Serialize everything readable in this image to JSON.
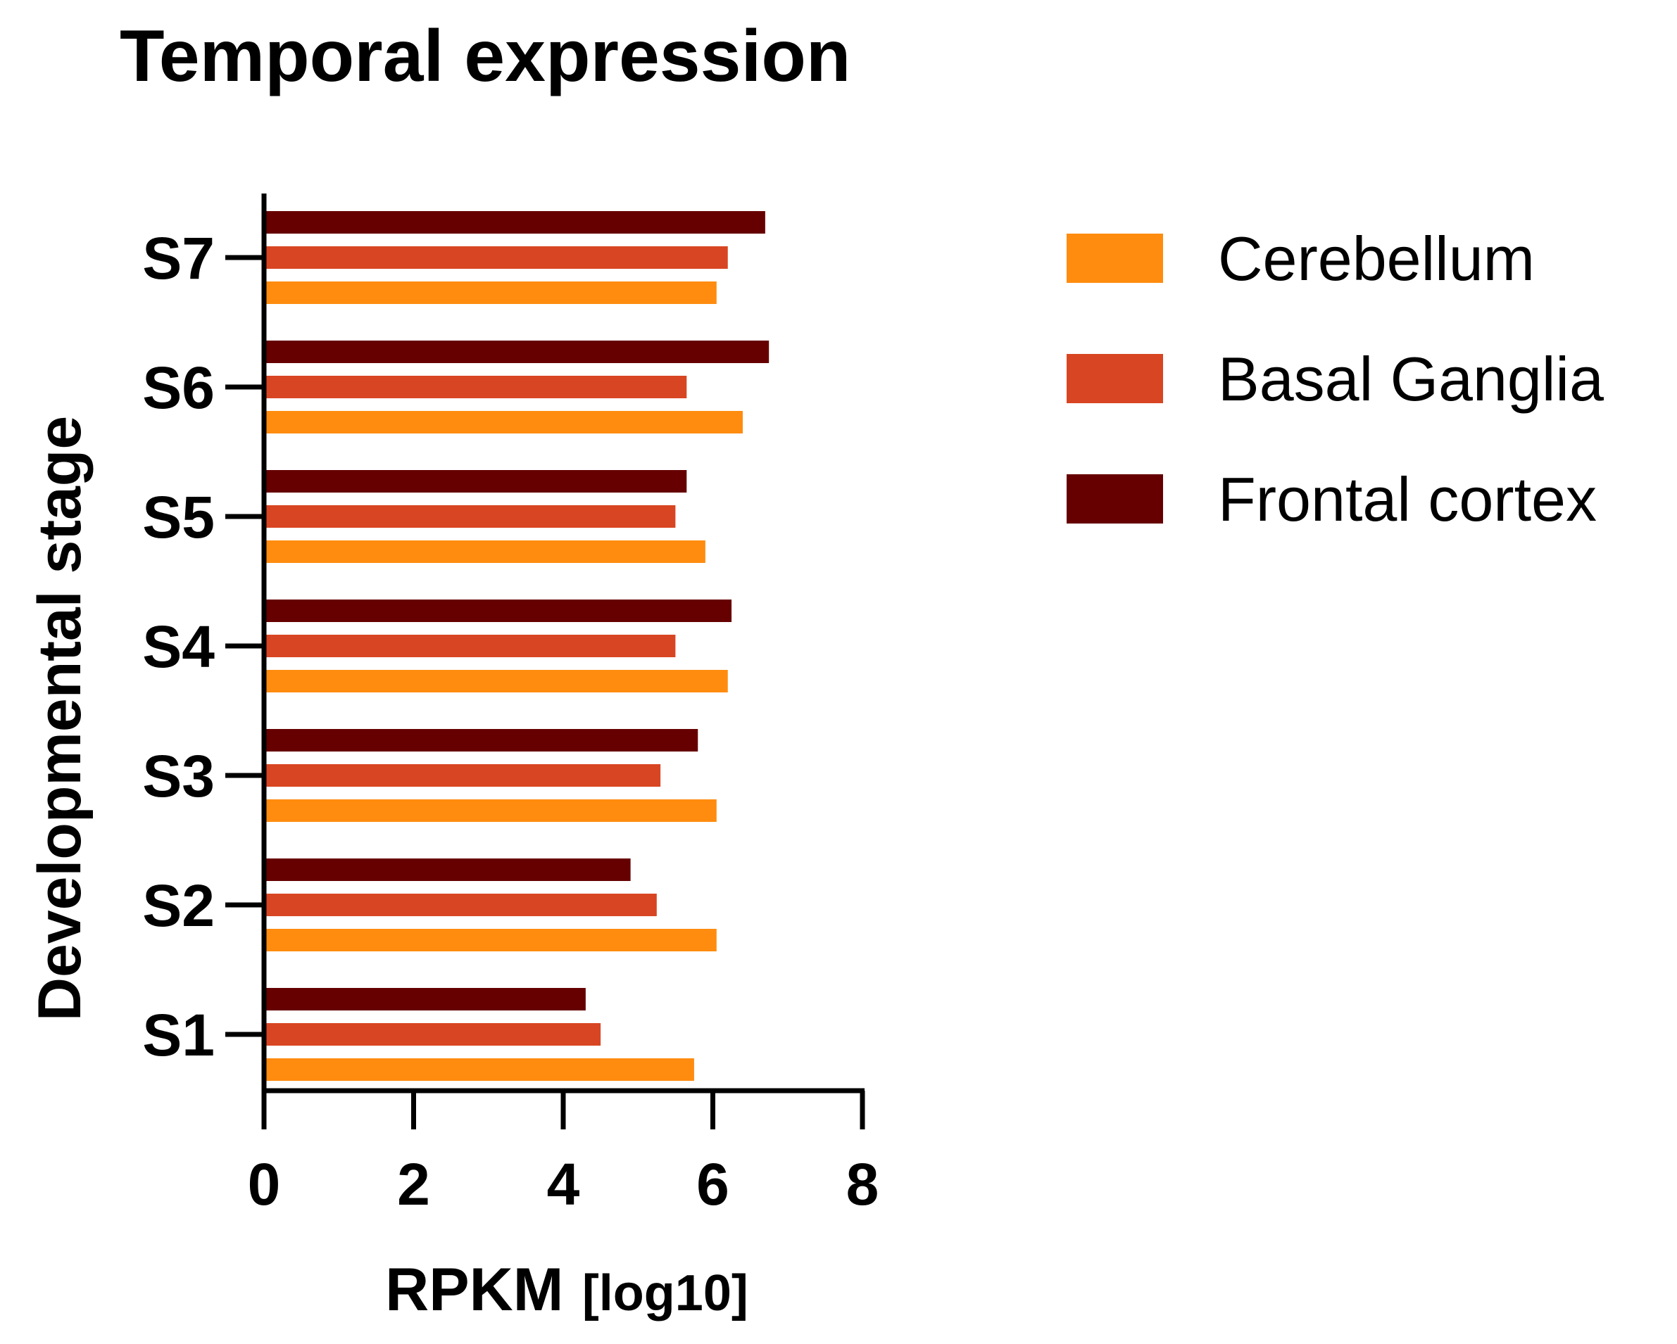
{
  "chart_data": {
    "type": "bar",
    "orientation": "horizontal",
    "title": "Temporal expression",
    "xlabel": "RPKM",
    "xlabel_unit": "[log10]",
    "ylabel": "Developmental stage",
    "xlim": [
      0,
      8
    ],
    "xticks": [
      "0",
      "2",
      "4",
      "6",
      "8"
    ],
    "categories": [
      "S1",
      "S2",
      "S3",
      "S4",
      "S5",
      "S6",
      "S7"
    ],
    "series": [
      {
        "name": "Cerebellum",
        "color": "#FF8C0F",
        "values": [
          5.75,
          6.05,
          6.05,
          6.2,
          5.9,
          6.4,
          6.05
        ]
      },
      {
        "name": "Basal Ganglia",
        "color": "#D84522",
        "values": [
          4.5,
          5.25,
          5.3,
          5.5,
          5.5,
          5.65,
          6.2
        ]
      },
      {
        "name": "Frontal cortex",
        "color": "#660000",
        "values": [
          4.3,
          4.9,
          5.8,
          6.25,
          5.65,
          6.75,
          6.7
        ]
      }
    ],
    "legend_position": "top-right",
    "grid": false
  }
}
